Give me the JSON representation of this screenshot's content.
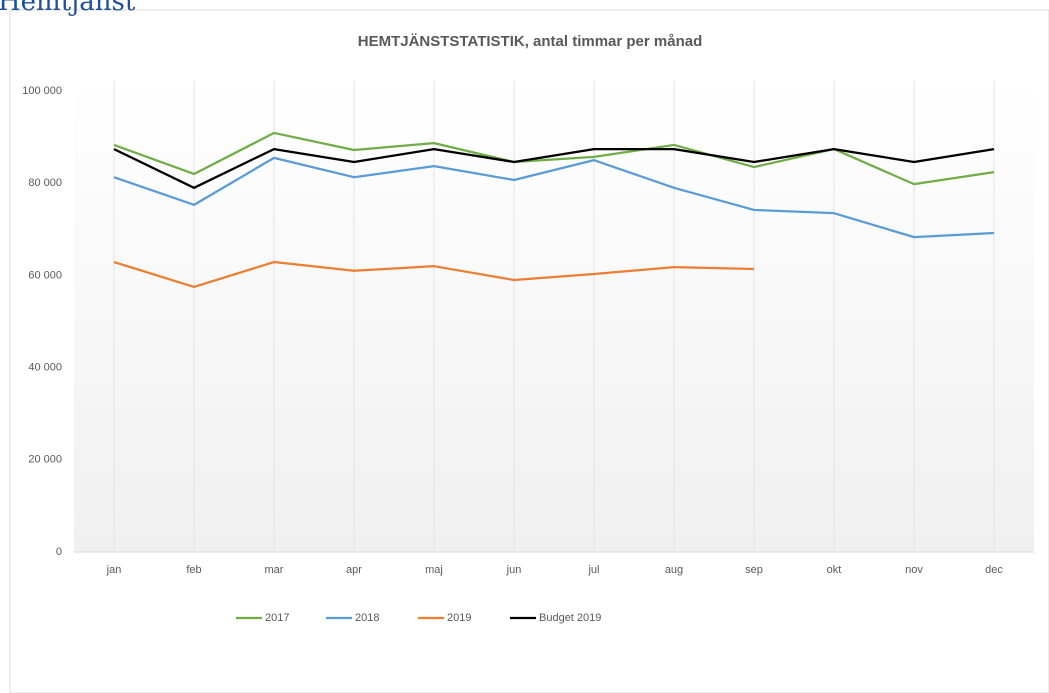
{
  "header": {
    "title": "Hemtjänst"
  },
  "chart_data": {
    "type": "line",
    "title": "HEMTJÄNSTSTATISTIK, antal timmar per månad",
    "categories": [
      "jan",
      "feb",
      "mar",
      "apr",
      "maj",
      "jun",
      "jul",
      "aug",
      "sep",
      "okt",
      "nov",
      "dec"
    ],
    "series": [
      {
        "name": "2017",
        "color": "#70ad47",
        "values": [
          88300,
          82000,
          90900,
          87200,
          88700,
          84600,
          85700,
          88300,
          83500,
          87400,
          79800,
          82400
        ]
      },
      {
        "name": "2018",
        "color": "#5b9bd5",
        "values": [
          81300,
          75300,
          85500,
          81300,
          83700,
          80700,
          85000,
          79000,
          74200,
          73500,
          68300,
          69200
        ]
      },
      {
        "name": "2019",
        "color": "#ed7d31",
        "values": [
          62900,
          57500,
          62900,
          61000,
          62000,
          59000,
          60300,
          61800,
          61400,
          null,
          null,
          null
        ]
      },
      {
        "name": "Budget 2019",
        "color": "#000000",
        "values": [
          87400,
          79000,
          87400,
          84600,
          87400,
          84600,
          87400,
          87400,
          84600,
          87400,
          84600,
          87400
        ]
      }
    ],
    "ylim": [
      0,
      100000
    ],
    "yticks": [
      0,
      {
        "value": 20000,
        "label": "20 000"
      },
      {
        "value": 40000,
        "label": "40 000"
      },
      {
        "value": 60000,
        "label": "60 000"
      },
      {
        "value": 80000,
        "label": "80 000"
      },
      {
        "value": 100000,
        "label": "100 000"
      }
    ],
    "xgrid": true,
    "legend": "bottom"
  }
}
